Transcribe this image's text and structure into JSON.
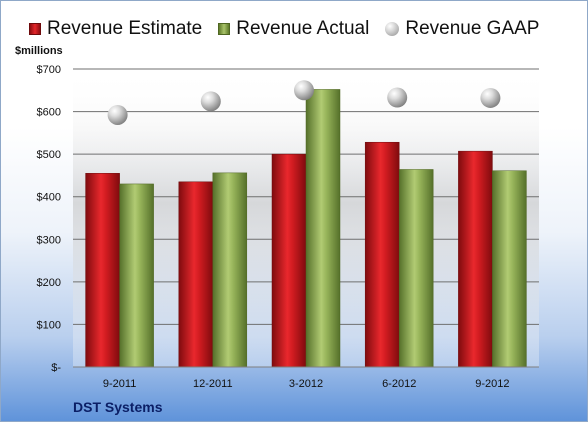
{
  "unit_label": "$millions",
  "company": "DST Systems",
  "legend": [
    {
      "label": "Revenue Estimate",
      "marker": "square",
      "color": "#c8181d"
    },
    {
      "label": "Revenue Actual",
      "marker": "square",
      "color": "#8aa84c"
    },
    {
      "label": "Revenue GAAP",
      "marker": "sphere",
      "color": "#bdbdbd"
    }
  ],
  "chart_data": {
    "type": "bar",
    "title": "",
    "xlabel": "",
    "ylabel": "$millions",
    "categories": [
      "9-2011",
      "12-2011",
      "3-2012",
      "6-2012",
      "9-2012"
    ],
    "series": [
      {
        "name": "Revenue Estimate",
        "type": "bar",
        "color": "#c8181d",
        "values": [
          455,
          435,
          500,
          528,
          507
        ]
      },
      {
        "name": "Revenue Actual",
        "type": "bar",
        "color": "#8aa84c",
        "values": [
          430,
          456,
          652,
          464,
          461
        ]
      },
      {
        "name": "Revenue GAAP",
        "type": "marker",
        "color": "#bdbdbd",
        "values": [
          592,
          624,
          650,
          633,
          632
        ]
      }
    ],
    "ylim": [
      0,
      700
    ],
    "yticks": [
      0,
      100,
      200,
      300,
      400,
      500,
      600,
      700
    ],
    "ytick_labels": [
      "$-",
      "$100",
      "$200",
      "$300",
      "$400",
      "$500",
      "$600",
      "$700"
    ],
    "grid": true,
    "legend_position": "top"
  }
}
